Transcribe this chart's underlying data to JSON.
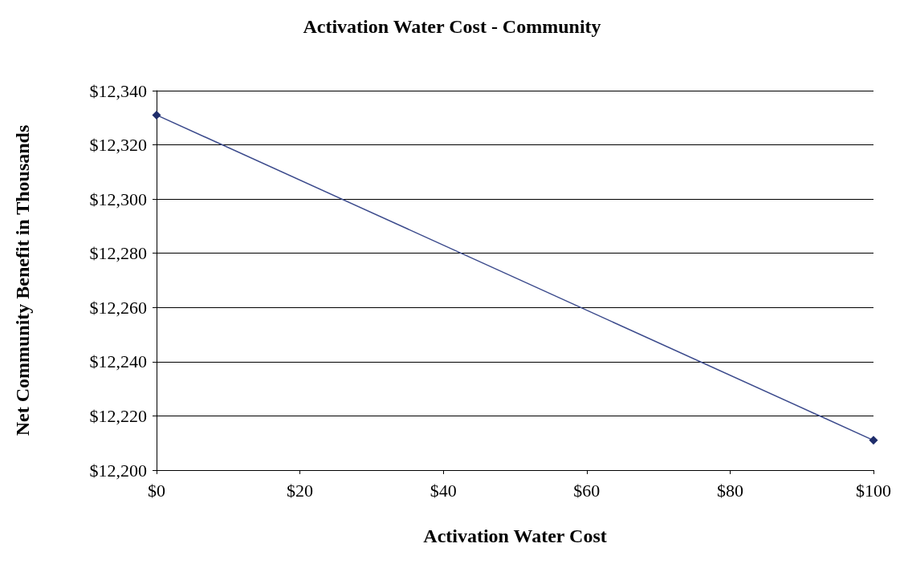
{
  "chart_data": {
    "type": "line",
    "title": "Activation Water Cost - Community",
    "xlabel": "Activation Water Cost",
    "ylabel": "Net Community Benefit in Thousands",
    "x": [
      0,
      100
    ],
    "series": [
      {
        "color": "#3b4a8c",
        "values": [
          12331,
          12211
        ]
      }
    ],
    "xlim": [
      0,
      100
    ],
    "xticks": [
      {
        "value": 0,
        "label": "$0"
      },
      {
        "value": 20,
        "label": "$20"
      },
      {
        "value": 40,
        "label": "$40"
      },
      {
        "value": 60,
        "label": "$60"
      },
      {
        "value": 80,
        "label": "$80"
      },
      {
        "value": 100,
        "label": "$100"
      }
    ],
    "ylim": [
      12200,
      12340
    ],
    "yticks": [
      {
        "value": 12200,
        "label": "$12,200"
      },
      {
        "value": 12220,
        "label": "$12,220"
      },
      {
        "value": 12240,
        "label": "$12,240"
      },
      {
        "value": 12260,
        "label": "$12,260"
      },
      {
        "value": 12280,
        "label": "$12,280"
      },
      {
        "value": 12300,
        "label": "$12,300"
      },
      {
        "value": 12320,
        "label": "$12,320"
      },
      {
        "value": 12340,
        "label": "$12,340"
      }
    ],
    "grid": "y",
    "marker": "diamond",
    "line_style": "solid"
  }
}
